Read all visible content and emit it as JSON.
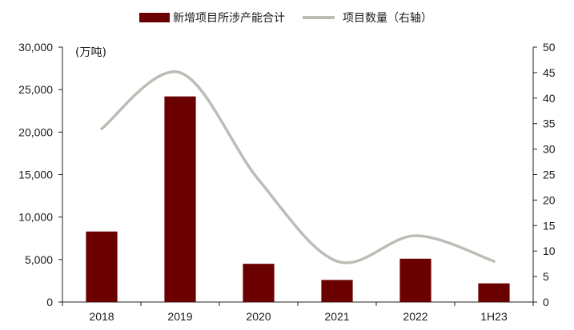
{
  "chart_data": {
    "type": "bar",
    "categories": [
      "2018",
      "2019",
      "2020",
      "2021",
      "2022",
      "1H23"
    ],
    "series": [
      {
        "name": "新增项目所涉产能合计",
        "type": "bar",
        "axis": "left",
        "color": "#6b0000",
        "values": [
          8300,
          24200,
          4500,
          2600,
          5100,
          2200
        ]
      },
      {
        "name": "项目数量（右轴）",
        "type": "line",
        "axis": "right",
        "color": "#bdbdb6",
        "smooth": true,
        "values": [
          34,
          45,
          24,
          8,
          13,
          8
        ]
      }
    ],
    "ylabel": "(万吨)",
    "ylim": [
      0,
      30000
    ],
    "y_ticks": [
      "0",
      "5,000",
      "10,000",
      "15,000",
      "20,000",
      "25,000",
      "30,000"
    ],
    "y2lim": [
      0,
      50
    ],
    "y2_ticks": [
      "0",
      "5",
      "10",
      "15",
      "20",
      "25",
      "30",
      "35",
      "40",
      "45",
      "50"
    ],
    "grid": false,
    "legend_position": "top"
  }
}
